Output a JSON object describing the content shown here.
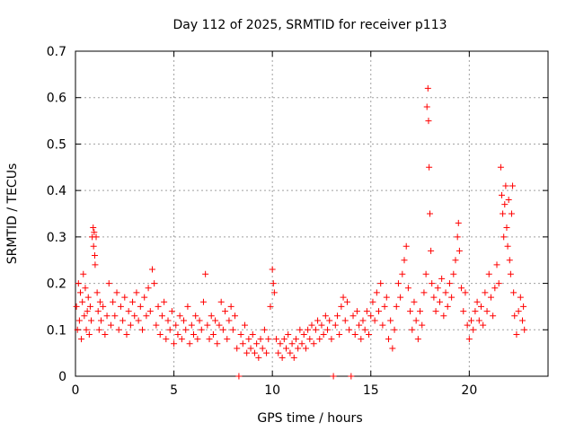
{
  "chart_data": {
    "type": "scatter",
    "title": "Day 112 of 2025, SRMTID for receiver p113",
    "xlabel": "GPS time / hours",
    "ylabel": "SRMTID / TECUs",
    "xlim": [
      0,
      24
    ],
    "ylim": [
      0,
      0.7
    ],
    "xticks": [
      0,
      5,
      10,
      15,
      20
    ],
    "yticks": [
      0,
      0.1,
      0.2,
      0.3,
      0.4,
      0.5,
      0.6,
      0.7
    ],
    "grid": true,
    "marker": "+",
    "color": "#ff0000",
    "series": [
      {
        "name": "SRMTID",
        "points": [
          [
            0.05,
            0.15
          ],
          [
            0.1,
            0.1
          ],
          [
            0.15,
            0.2
          ],
          [
            0.2,
            0.12
          ],
          [
            0.25,
            0.18
          ],
          [
            0.3,
            0.08
          ],
          [
            0.35,
            0.16
          ],
          [
            0.4,
            0.22
          ],
          [
            0.45,
            0.13
          ],
          [
            0.5,
            0.19
          ],
          [
            0.55,
            0.1
          ],
          [
            0.6,
            0.14
          ],
          [
            0.65,
            0.17
          ],
          [
            0.7,
            0.09
          ],
          [
            0.75,
            0.15
          ],
          [
            0.8,
            0.12
          ],
          [
            0.85,
            0.3
          ],
          [
            0.9,
            0.32
          ],
          [
            0.92,
            0.28
          ],
          [
            0.95,
            0.31
          ],
          [
            0.98,
            0.26
          ],
          [
            1.0,
            0.24
          ],
          [
            1.05,
            0.3
          ],
          [
            1.1,
            0.18
          ],
          [
            1.15,
            0.14
          ],
          [
            1.2,
            0.1
          ],
          [
            1.25,
            0.16
          ],
          [
            1.3,
            0.12
          ],
          [
            1.4,
            0.15
          ],
          [
            1.5,
            0.09
          ],
          [
            1.6,
            0.13
          ],
          [
            1.7,
            0.2
          ],
          [
            1.8,
            0.11
          ],
          [
            1.9,
            0.16
          ],
          [
            2.0,
            0.13
          ],
          [
            2.1,
            0.18
          ],
          [
            2.2,
            0.1
          ],
          [
            2.3,
            0.15
          ],
          [
            2.4,
            0.12
          ],
          [
            2.5,
            0.17
          ],
          [
            2.6,
            0.09
          ],
          [
            2.7,
            0.14
          ],
          [
            2.8,
            0.11
          ],
          [
            2.9,
            0.16
          ],
          [
            3.0,
            0.13
          ],
          [
            3.1,
            0.18
          ],
          [
            3.2,
            0.12
          ],
          [
            3.3,
            0.15
          ],
          [
            3.4,
            0.1
          ],
          [
            3.5,
            0.17
          ],
          [
            3.6,
            0.13
          ],
          [
            3.7,
            0.19
          ],
          [
            3.8,
            0.14
          ],
          [
            3.9,
            0.23
          ],
          [
            4.0,
            0.2
          ],
          [
            4.1,
            0.11
          ],
          [
            4.2,
            0.15
          ],
          [
            4.3,
            0.09
          ],
          [
            4.4,
            0.13
          ],
          [
            4.5,
            0.16
          ],
          [
            4.6,
            0.08
          ],
          [
            4.7,
            0.12
          ],
          [
            4.8,
            0.1
          ],
          [
            4.9,
            0.14
          ],
          [
            5.0,
            0.07
          ],
          [
            5.1,
            0.11
          ],
          [
            5.2,
            0.09
          ],
          [
            5.3,
            0.13
          ],
          [
            5.4,
            0.08
          ],
          [
            5.5,
            0.12
          ],
          [
            5.6,
            0.1
          ],
          [
            5.7,
            0.15
          ],
          [
            5.8,
            0.07
          ],
          [
            5.9,
            0.11
          ],
          [
            6.0,
            0.09
          ],
          [
            6.1,
            0.13
          ],
          [
            6.2,
            0.08
          ],
          [
            6.3,
            0.12
          ],
          [
            6.4,
            0.1
          ],
          [
            6.5,
            0.16
          ],
          [
            6.6,
            0.22
          ],
          [
            6.7,
            0.11
          ],
          [
            6.8,
            0.08
          ],
          [
            6.9,
            0.13
          ],
          [
            7.0,
            0.09
          ],
          [
            7.1,
            0.12
          ],
          [
            7.2,
            0.07
          ],
          [
            7.3,
            0.11
          ],
          [
            7.4,
            0.16
          ],
          [
            7.5,
            0.1
          ],
          [
            7.6,
            0.14
          ],
          [
            7.7,
            0.08
          ],
          [
            7.8,
            0.12
          ],
          [
            7.9,
            0.15
          ],
          [
            8.0,
            0.1
          ],
          [
            8.1,
            0.13
          ],
          [
            8.2,
            0.06
          ],
          [
            8.3,
            0.0
          ],
          [
            8.4,
            0.09
          ],
          [
            8.5,
            0.07
          ],
          [
            8.6,
            0.11
          ],
          [
            8.7,
            0.05
          ],
          [
            8.8,
            0.08
          ],
          [
            8.9,
            0.06
          ],
          [
            9.0,
            0.09
          ],
          [
            9.1,
            0.05
          ],
          [
            9.2,
            0.07
          ],
          [
            9.3,
            0.04
          ],
          [
            9.4,
            0.08
          ],
          [
            9.5,
            0.06
          ],
          [
            9.6,
            0.1
          ],
          [
            9.7,
            0.05
          ],
          [
            9.8,
            0.08
          ],
          [
            9.9,
            0.15
          ],
          [
            10.0,
            0.23
          ],
          [
            10.05,
            0.2
          ],
          [
            10.1,
            0.18
          ],
          [
            10.2,
            0.08
          ],
          [
            10.3,
            0.05
          ],
          [
            10.4,
            0.07
          ],
          [
            10.5,
            0.04
          ],
          [
            10.6,
            0.08
          ],
          [
            10.7,
            0.06
          ],
          [
            10.8,
            0.09
          ],
          [
            10.9,
            0.05
          ],
          [
            11.0,
            0.07
          ],
          [
            11.1,
            0.04
          ],
          [
            11.2,
            0.08
          ],
          [
            11.3,
            0.06
          ],
          [
            11.4,
            0.1
          ],
          [
            11.5,
            0.07
          ],
          [
            11.6,
            0.09
          ],
          [
            11.7,
            0.06
          ],
          [
            11.8,
            0.1
          ],
          [
            11.9,
            0.08
          ],
          [
            12.0,
            0.11
          ],
          [
            12.1,
            0.07
          ],
          [
            12.2,
            0.1
          ],
          [
            12.3,
            0.12
          ],
          [
            12.4,
            0.08
          ],
          [
            12.5,
            0.11
          ],
          [
            12.6,
            0.09
          ],
          [
            12.7,
            0.13
          ],
          [
            12.8,
            0.1
          ],
          [
            12.9,
            0.12
          ],
          [
            13.0,
            0.08
          ],
          [
            13.1,
            0.0
          ],
          [
            13.2,
            0.11
          ],
          [
            13.3,
            0.13
          ],
          [
            13.4,
            0.09
          ],
          [
            13.5,
            0.15
          ],
          [
            13.6,
            0.17
          ],
          [
            13.7,
            0.12
          ],
          [
            13.8,
            0.16
          ],
          [
            13.9,
            0.1
          ],
          [
            14.0,
            0.0
          ],
          [
            14.1,
            0.13
          ],
          [
            14.2,
            0.09
          ],
          [
            14.3,
            0.14
          ],
          [
            14.4,
            0.11
          ],
          [
            14.5,
            0.08
          ],
          [
            14.6,
            0.12
          ],
          [
            14.7,
            0.1
          ],
          [
            14.8,
            0.14
          ],
          [
            14.9,
            0.09
          ],
          [
            15.0,
            0.13
          ],
          [
            15.1,
            0.16
          ],
          [
            15.2,
            0.12
          ],
          [
            15.3,
            0.18
          ],
          [
            15.4,
            0.14
          ],
          [
            15.5,
            0.2
          ],
          [
            15.6,
            0.11
          ],
          [
            15.7,
            0.15
          ],
          [
            15.8,
            0.17
          ],
          [
            15.9,
            0.08
          ],
          [
            16.0,
            0.12
          ],
          [
            16.1,
            0.06
          ],
          [
            16.2,
            0.1
          ],
          [
            16.3,
            0.15
          ],
          [
            16.4,
            0.2
          ],
          [
            16.5,
            0.17
          ],
          [
            16.6,
            0.22
          ],
          [
            16.7,
            0.25
          ],
          [
            16.8,
            0.28
          ],
          [
            16.9,
            0.19
          ],
          [
            17.0,
            0.14
          ],
          [
            17.1,
            0.1
          ],
          [
            17.2,
            0.16
          ],
          [
            17.3,
            0.12
          ],
          [
            17.4,
            0.08
          ],
          [
            17.5,
            0.14
          ],
          [
            17.6,
            0.11
          ],
          [
            17.7,
            0.18
          ],
          [
            17.8,
            0.22
          ],
          [
            17.85,
            0.58
          ],
          [
            17.9,
            0.62
          ],
          [
            17.93,
            0.55
          ],
          [
            17.96,
            0.45
          ],
          [
            18.0,
            0.35
          ],
          [
            18.05,
            0.27
          ],
          [
            18.1,
            0.2
          ],
          [
            18.2,
            0.17
          ],
          [
            18.3,
            0.14
          ],
          [
            18.4,
            0.19
          ],
          [
            18.5,
            0.16
          ],
          [
            18.6,
            0.21
          ],
          [
            18.7,
            0.13
          ],
          [
            18.8,
            0.18
          ],
          [
            18.9,
            0.15
          ],
          [
            19.0,
            0.2
          ],
          [
            19.1,
            0.17
          ],
          [
            19.2,
            0.22
          ],
          [
            19.3,
            0.25
          ],
          [
            19.4,
            0.3
          ],
          [
            19.45,
            0.33
          ],
          [
            19.5,
            0.27
          ],
          [
            19.6,
            0.19
          ],
          [
            19.7,
            0.14
          ],
          [
            19.8,
            0.18
          ],
          [
            19.9,
            0.11
          ],
          [
            20.0,
            0.08
          ],
          [
            20.1,
            0.12
          ],
          [
            20.2,
            0.1
          ],
          [
            20.3,
            0.14
          ],
          [
            20.4,
            0.16
          ],
          [
            20.5,
            0.12
          ],
          [
            20.6,
            0.15
          ],
          [
            20.7,
            0.11
          ],
          [
            20.8,
            0.18
          ],
          [
            20.9,
            0.14
          ],
          [
            21.0,
            0.22
          ],
          [
            21.1,
            0.17
          ],
          [
            21.2,
            0.13
          ],
          [
            21.3,
            0.19
          ],
          [
            21.4,
            0.24
          ],
          [
            21.5,
            0.2
          ],
          [
            21.6,
            0.45
          ],
          [
            21.65,
            0.39
          ],
          [
            21.7,
            0.35
          ],
          [
            21.75,
            0.3
          ],
          [
            21.8,
            0.37
          ],
          [
            21.85,
            0.41
          ],
          [
            21.9,
            0.32
          ],
          [
            21.95,
            0.28
          ],
          [
            22.0,
            0.38
          ],
          [
            22.05,
            0.25
          ],
          [
            22.1,
            0.22
          ],
          [
            22.15,
            0.35
          ],
          [
            22.2,
            0.41
          ],
          [
            22.25,
            0.18
          ],
          [
            22.3,
            0.13
          ],
          [
            22.4,
            0.09
          ],
          [
            22.5,
            0.14
          ],
          [
            22.6,
            0.17
          ],
          [
            22.7,
            0.12
          ],
          [
            22.75,
            0.15
          ],
          [
            22.8,
            0.1
          ]
        ]
      }
    ]
  }
}
